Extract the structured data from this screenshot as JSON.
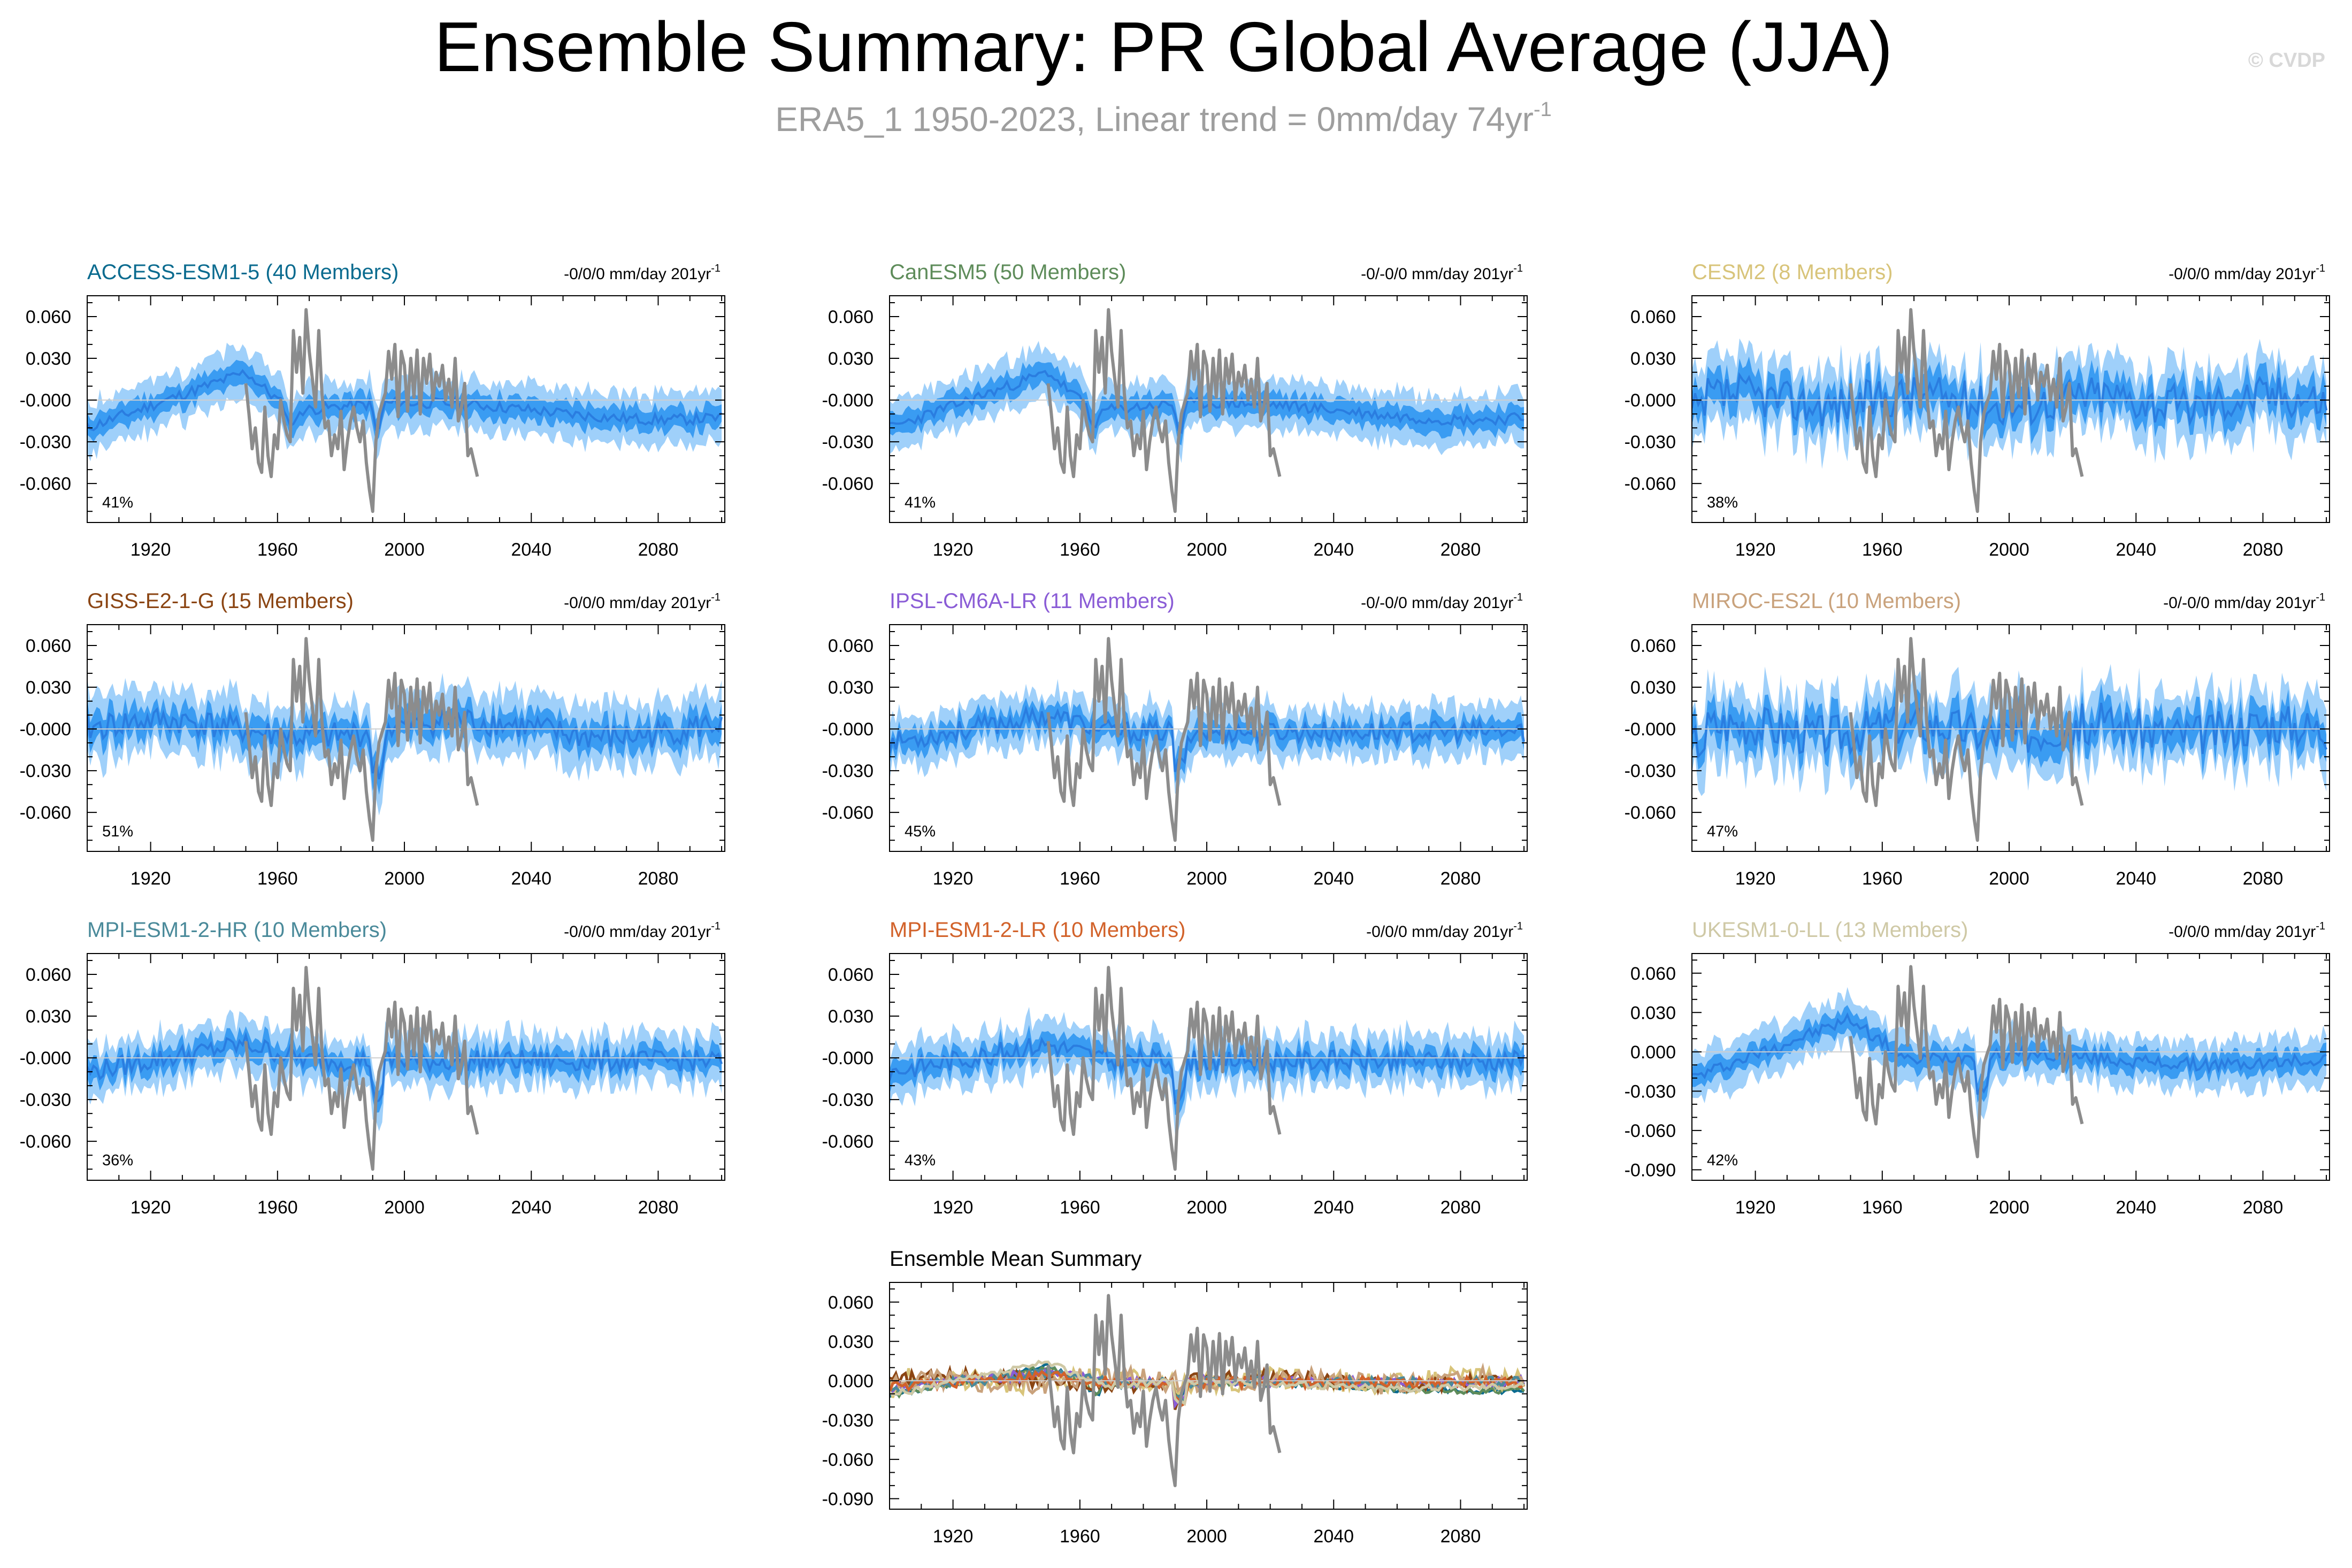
{
  "title": "Ensemble Summary: PR Global Average (JJA)",
  "subtitle_main": "ERA5_1 1950-2023, Linear trend = 0mm/day 74yr",
  "subtitle_sup": "-1",
  "watermark": "© CVDP",
  "colors": {
    "obs": "#8c8c8c",
    "spread_outer": "#9fd0fa",
    "spread_inner": "#3a9cf2",
    "mean": "#2a7de0"
  },
  "chart_data": [
    {
      "type": "line",
      "title": "ACCESS-ESM1-5 (40 Members)",
      "title_color": "#0a6b8f",
      "trend": "-0/0/0 mm/day 201yr",
      "trend_sup": "-1",
      "percent": "41%",
      "profile": "access",
      "seed": 11,
      "xlim": [
        1900,
        2101
      ],
      "ylim": [
        -0.088,
        0.075
      ],
      "xticks": [
        "1920",
        "1960",
        "2000",
        "2040",
        "2080"
      ],
      "yticks": [
        "0.060",
        "0.030",
        "-0.000",
        "-0.030",
        "-0.060"
      ]
    },
    {
      "type": "line",
      "title": "CanESM5 (50 Members)",
      "title_color": "#5e8c5a",
      "trend": "-0/-0/0 mm/day 201yr",
      "trend_sup": "-1",
      "percent": "41%",
      "profile": "canesm",
      "seed": 23,
      "xlim": [
        1900,
        2101
      ],
      "ylim": [
        -0.088,
        0.075
      ],
      "xticks": [
        "1920",
        "1960",
        "2000",
        "2040",
        "2080"
      ],
      "yticks": [
        "0.060",
        "0.030",
        "-0.000",
        "-0.030",
        "-0.060"
      ]
    },
    {
      "type": "line",
      "title": "CESM2 (8 Members)",
      "title_color": "#d8c47a",
      "trend": "-0/0/0 mm/day 201yr",
      "trend_sup": "-1",
      "percent": "38%",
      "profile": "cesm",
      "seed": 37,
      "xlim": [
        1900,
        2101
      ],
      "ylim": [
        -0.088,
        0.075
      ],
      "xticks": [
        "1920",
        "1960",
        "2000",
        "2040",
        "2080"
      ],
      "yticks": [
        "0.060",
        "0.030",
        "-0.000",
        "-0.030",
        "-0.060"
      ]
    },
    {
      "type": "line",
      "title": "GISS-E2-1-G (15 Members)",
      "title_color": "#8b4513",
      "trend": "-0/0/0 mm/day 201yr",
      "trend_sup": "-1",
      "percent": "51%",
      "profile": "giss",
      "seed": 41,
      "xlim": [
        1900,
        2101
      ],
      "ylim": [
        -0.088,
        0.075
      ],
      "xticks": [
        "1920",
        "1960",
        "2000",
        "2040",
        "2080"
      ],
      "yticks": [
        "0.060",
        "0.030",
        "-0.000",
        "-0.030",
        "-0.060"
      ]
    },
    {
      "type": "line",
      "title": "IPSL-CM6A-LR (11 Members)",
      "title_color": "#8a5cd6",
      "trend": "-0/-0/0 mm/day 201yr",
      "trend_sup": "-1",
      "percent": "45%",
      "profile": "ipsl",
      "seed": 53,
      "xlim": [
        1900,
        2101
      ],
      "ylim": [
        -0.088,
        0.075
      ],
      "xticks": [
        "1920",
        "1960",
        "2000",
        "2040",
        "2080"
      ],
      "yticks": [
        "0.060",
        "0.030",
        "-0.000",
        "-0.030",
        "-0.060"
      ]
    },
    {
      "type": "line",
      "title": "MIROC-ES2L (10 Members)",
      "title_color": "#c9a27c",
      "trend": "-0/-0/0 mm/day 201yr",
      "trend_sup": "-1",
      "percent": "47%",
      "profile": "miroc",
      "seed": 67,
      "xlim": [
        1900,
        2101
      ],
      "ylim": [
        -0.088,
        0.075
      ],
      "xticks": [
        "1920",
        "1960",
        "2000",
        "2040",
        "2080"
      ],
      "yticks": [
        "0.060",
        "0.030",
        "-0.000",
        "-0.030",
        "-0.060"
      ]
    },
    {
      "type": "line",
      "title": "MPI-ESM1-2-HR (10 Members)",
      "title_color": "#4a8a9a",
      "trend": "-0/0/0 mm/day 201yr",
      "trend_sup": "-1",
      "percent": "36%",
      "profile": "mpihr",
      "seed": 79,
      "xlim": [
        1900,
        2101
      ],
      "ylim": [
        -0.088,
        0.075
      ],
      "xticks": [
        "1920",
        "1960",
        "2000",
        "2040",
        "2080"
      ],
      "yticks": [
        "0.060",
        "0.030",
        "-0.000",
        "-0.030",
        "-0.060"
      ]
    },
    {
      "type": "line",
      "title": "MPI-ESM1-2-LR (10 Members)",
      "title_color": "#d2622a",
      "trend": "-0/0/0 mm/day 201yr",
      "trend_sup": "-1",
      "percent": "43%",
      "profile": "mpilr",
      "seed": 83,
      "xlim": [
        1900,
        2101
      ],
      "ylim": [
        -0.088,
        0.075
      ],
      "xticks": [
        "1920",
        "1960",
        "2000",
        "2040",
        "2080"
      ],
      "yticks": [
        "0.060",
        "0.030",
        "-0.000",
        "-0.030",
        "-0.060"
      ]
    },
    {
      "type": "line",
      "title": "UKESM1-0-LL (13 Members)",
      "title_color": "#cfc9a6",
      "trend": "-0/0/0 mm/day 201yr",
      "trend_sup": "-1",
      "percent": "42%",
      "profile": "ukesm",
      "seed": 97,
      "xlim": [
        1900,
        2101
      ],
      "ylim": [
        -0.098,
        0.075
      ],
      "xticks": [
        "1920",
        "1960",
        "2000",
        "2040",
        "2080"
      ],
      "yticks": [
        "0.060",
        "0.030",
        "0.000",
        "-0.030",
        "-0.060",
        "-0.090"
      ]
    },
    {
      "type": "line",
      "title": "Ensemble Mean Summary",
      "title_color": "#000000",
      "trend": "",
      "trend_sup": "",
      "percent": "",
      "profile": "summary",
      "seed": 101,
      "xlim": [
        1900,
        2101
      ],
      "ylim": [
        -0.098,
        0.075
      ],
      "xticks": [
        "1920",
        "1960",
        "2000",
        "2040",
        "2080"
      ],
      "yticks": [
        "0.060",
        "0.030",
        "0.000",
        "-0.030",
        "-0.060",
        "-0.090"
      ],
      "series": [
        {
          "name": "ACCESS-ESM1-5",
          "color": "#0a6b8f"
        },
        {
          "name": "CanESM5",
          "color": "#5e8c5a"
        },
        {
          "name": "CESM2",
          "color": "#d8c47a"
        },
        {
          "name": "GISS-E2-1-G",
          "color": "#8b4513"
        },
        {
          "name": "IPSL-CM6A-LR",
          "color": "#8a5cd6"
        },
        {
          "name": "MIROC-ES2L",
          "color": "#c9a27c"
        },
        {
          "name": "MPI-ESM1-2-HR",
          "color": "#4a8a9a"
        },
        {
          "name": "MPI-ESM1-2-LR",
          "color": "#d2622a"
        },
        {
          "name": "UKESM1-0-LL",
          "color": "#cfc9a6"
        }
      ]
    }
  ],
  "observations": {
    "name": "ERA5_1",
    "years": [
      1950,
      1951,
      1952,
      1953,
      1954,
      1955,
      1956,
      1957,
      1958,
      1959,
      1960,
      1961,
      1962,
      1963,
      1964,
      1965,
      1966,
      1967,
      1968,
      1969,
      1970,
      1971,
      1972,
      1973,
      1974,
      1975,
      1976,
      1977,
      1978,
      1979,
      1980,
      1981,
      1982,
      1983,
      1984,
      1985,
      1986,
      1987,
      1988,
      1989,
      1990,
      1991,
      1992,
      1993,
      1994,
      1995,
      1996,
      1997,
      1998,
      1999,
      2000,
      2001,
      2002,
      2003,
      2004,
      2005,
      2006,
      2007,
      2008,
      2009,
      2010,
      2011,
      2012,
      2013,
      2014,
      2015,
      2016,
      2017,
      2018,
      2019,
      2020,
      2021,
      2022,
      2023
    ],
    "values": [
      0.012,
      -0.01,
      -0.035,
      -0.02,
      -0.045,
      -0.052,
      -0.005,
      -0.04,
      -0.055,
      -0.025,
      -0.035,
      0.0,
      -0.015,
      -0.025,
      -0.03,
      0.05,
      0.02,
      0.045,
      0.005,
      0.065,
      0.035,
      0.015,
      -0.005,
      0.05,
      0.005,
      -0.02,
      -0.015,
      -0.04,
      -0.025,
      -0.035,
      -0.008,
      -0.05,
      -0.03,
      -0.015,
      -0.005,
      -0.02,
      -0.03,
      -0.015,
      -0.045,
      -0.065,
      -0.08,
      -0.03,
      -0.01,
      -0.002,
      0.005,
      0.035,
      0.015,
      0.04,
      -0.012,
      0.035,
      0.025,
      -0.008,
      0.03,
      0.002,
      0.036,
      -0.01,
      0.03,
      0.012,
      0.033,
      0.0,
      0.02,
      0.01,
      0.025,
      0.0,
      0.015,
      -0.005,
      0.03,
      -0.015,
      -0.005,
      0.012,
      -0.04,
      -0.035,
      -0.045,
      -0.055
    ]
  }
}
